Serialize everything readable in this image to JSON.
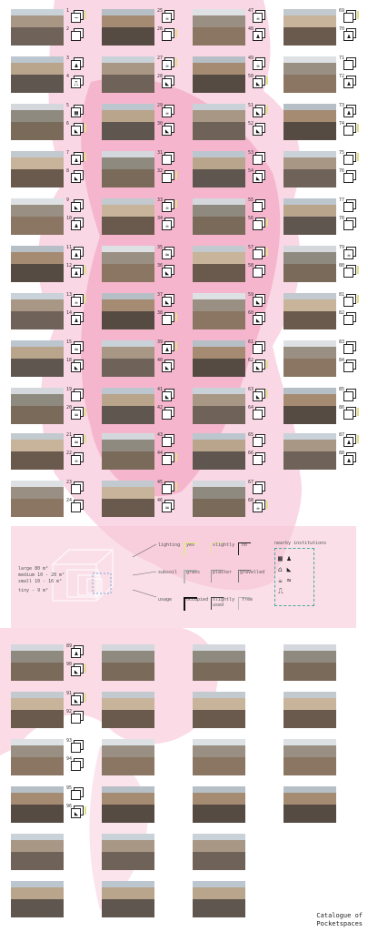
{
  "title": [
    "Catalogue of",
    "Pocketspaces"
  ],
  "legend": {
    "size": [
      {
        "label": "large",
        "value": "80 m²"
      },
      {
        "label": "medium",
        "value": "10 - 20 m²"
      },
      {
        "label": "small",
        "value": "10 - 16 m²"
      },
      {
        "label": "tiny",
        "value": "- 9 m²"
      }
    ],
    "lighting": {
      "label": "lighting",
      "options": [
        "yes",
        "slightly",
        "no"
      ]
    },
    "subsoil": {
      "label": "subsoil",
      "options": [
        "grass",
        "plaster",
        "gravelled"
      ]
    },
    "usage": {
      "label": "usage",
      "options": [
        "occupied",
        "slightly used",
        "free"
      ]
    },
    "institutions": {
      "label": "nearby institutions"
    },
    "colors": {
      "lighting": "#e8e39a",
      "subsoil": "#b9b9b9",
      "usage": "#111111",
      "pink": "#f2a6c3"
    }
  },
  "entries": [
    {
      "n": "1",
      "ic": [
        "ui-wave"
      ]
    },
    {
      "n": "2",
      "ic": [
        "box"
      ]
    },
    {
      "n": "3",
      "ic": [
        "people"
      ]
    },
    {
      "n": "4",
      "ic": [
        "bench"
      ]
    },
    {
      "n": "5",
      "ic": [
        "pool",
        "people"
      ]
    },
    {
      "n": "6",
      "ic": [
        "slide"
      ]
    },
    {
      "n": "7",
      "ic": [
        "people"
      ]
    },
    {
      "n": "8",
      "ic": [
        "slide"
      ]
    },
    {
      "n": "9",
      "ic": [
        "slide"
      ]
    },
    {
      "n": "10",
      "ic": [
        "people"
      ]
    },
    {
      "n": "11",
      "ic": [
        "people"
      ]
    },
    {
      "n": "12",
      "ic": [
        "people"
      ]
    },
    {
      "n": "13",
      "ic": [
        "cup"
      ]
    },
    {
      "n": "14",
      "ic": [
        "people"
      ]
    },
    {
      "n": "15",
      "ic": [
        "wave"
      ]
    },
    {
      "n": "18",
      "ic": [
        "slide"
      ]
    },
    {
      "n": "19",
      "ic": [
        "box"
      ]
    },
    {
      "n": "20",
      "ic": [
        "wave"
      ]
    },
    {
      "n": "21",
      "ic": [
        "wave"
      ]
    },
    {
      "n": "22",
      "ic": [
        "cup"
      ]
    },
    {
      "n": "23",
      "ic": [
        "box"
      ]
    },
    {
      "n": "24",
      "ic": [
        "box"
      ]
    },
    {
      "n": "25",
      "ic": [
        "cup"
      ]
    },
    {
      "n": "26",
      "ic": [
        "box"
      ]
    },
    {
      "n": "27",
      "ic": [
        "cup"
      ]
    },
    {
      "n": "28",
      "ic": [
        "slide"
      ]
    },
    {
      "n": "29",
      "ic": [
        "cup"
      ]
    },
    {
      "n": "30",
      "ic": [
        "slide"
      ]
    },
    {
      "n": "31",
      "ic": [
        "box"
      ]
    },
    {
      "n": "32",
      "ic": [
        "box"
      ]
    },
    {
      "n": "33",
      "ic": [
        "cup"
      ]
    },
    {
      "n": "34",
      "ic": [
        "cup"
      ]
    },
    {
      "n": "35",
      "ic": [
        "wave"
      ]
    },
    {
      "n": "36",
      "ic": [
        "slide"
      ]
    },
    {
      "n": "37",
      "ic": [
        "slide"
      ]
    },
    {
      "n": "38",
      "ic": [
        "box"
      ]
    },
    {
      "n": "39",
      "ic": [
        "people"
      ]
    },
    {
      "n": "40",
      "ic": [
        "slide"
      ]
    },
    {
      "n": "41",
      "ic": [
        "slide"
      ]
    },
    {
      "n": "42",
      "ic": [
        "box"
      ]
    },
    {
      "n": "43",
      "ic": [
        "box"
      ]
    },
    {
      "n": "44",
      "ic": [
        "box"
      ]
    },
    {
      "n": "45",
      "ic": [
        "box"
      ]
    },
    {
      "n": "46",
      "ic": [
        "wave"
      ]
    },
    {
      "n": "47",
      "ic": [
        "cup"
      ]
    },
    {
      "n": "48",
      "ic": [
        "people"
      ]
    },
    {
      "n": "49",
      "ic": [
        "cup"
      ]
    },
    {
      "n": "50",
      "ic": [
        "slide"
      ]
    },
    {
      "n": "51",
      "ic": [
        "slide"
      ]
    },
    {
      "n": "52",
      "ic": [
        "slide"
      ]
    },
    {
      "n": "53",
      "ic": [
        "box"
      ]
    },
    {
      "n": "54",
      "ic": [
        "slide"
      ]
    },
    {
      "n": "55",
      "ic": [
        "box"
      ]
    },
    {
      "n": "56",
      "ic": [
        "box"
      ]
    },
    {
      "n": "57",
      "ic": [
        "box"
      ]
    },
    {
      "n": "58",
      "ic": [
        "box"
      ]
    },
    {
      "n": "59",
      "ic": [
        "slide"
      ]
    },
    {
      "n": "60",
      "ic": [
        "slide"
      ]
    },
    {
      "n": "61",
      "ic": [
        "box"
      ]
    },
    {
      "n": "62",
      "ic": [
        "slide"
      ]
    },
    {
      "n": "63",
      "ic": [
        "slide"
      ]
    },
    {
      "n": "64",
      "ic": [
        "box"
      ]
    },
    {
      "n": "65",
      "ic": [
        "box"
      ]
    },
    {
      "n": "66",
      "ic": [
        "box"
      ]
    },
    {
      "n": "67",
      "ic": [
        "box"
      ]
    },
    {
      "n": "68",
      "ic": [
        "cup"
      ]
    },
    {
      "n": "69",
      "ic": [
        "box"
      ]
    },
    {
      "n": "70",
      "ic": [
        "people"
      ]
    },
    {
      "n": "71",
      "ic": [
        "box"
      ]
    },
    {
      "n": "72",
      "ic": [
        "people"
      ]
    },
    {
      "n": "73",
      "ic": [
        "people"
      ]
    },
    {
      "n": "74",
      "ic": [
        "box"
      ]
    },
    {
      "n": "75",
      "ic": [
        "box"
      ]
    },
    {
      "n": "76",
      "ic": [
        "box"
      ]
    },
    {
      "n": "77",
      "ic": [
        "box"
      ]
    },
    {
      "n": "78",
      "ic": [
        "box"
      ]
    },
    {
      "n": "79",
      "ic": [
        "cup"
      ]
    },
    {
      "n": "80",
      "ic": [
        "box"
      ]
    },
    {
      "n": "81",
      "ic": [
        "box"
      ]
    },
    {
      "n": "82",
      "ic": [
        "box"
      ]
    },
    {
      "n": "83",
      "ic": [
        "box"
      ]
    },
    {
      "n": "84",
      "ic": [
        "box"
      ]
    },
    {
      "n": "85",
      "ic": [
        "box"
      ]
    },
    {
      "n": "86",
      "ic": [
        "box"
      ]
    },
    {
      "n": "87",
      "ic": [
        "people"
      ]
    },
    {
      "n": "88",
      "ic": [
        "people"
      ]
    },
    {
      "n": "89",
      "ic": [
        "people"
      ]
    },
    {
      "n": "90",
      "ic": [
        "slide"
      ]
    },
    {
      "n": "91",
      "ic": [
        "slide"
      ]
    },
    {
      "n": "92",
      "ic": [
        "box"
      ]
    },
    {
      "n": "93",
      "ic": [
        "box"
      ]
    },
    {
      "n": "94",
      "ic": [
        "box"
      ]
    },
    {
      "n": "95",
      "ic": [
        "box"
      ]
    },
    {
      "n": "96",
      "ic": [
        "slide"
      ]
    }
  ]
}
